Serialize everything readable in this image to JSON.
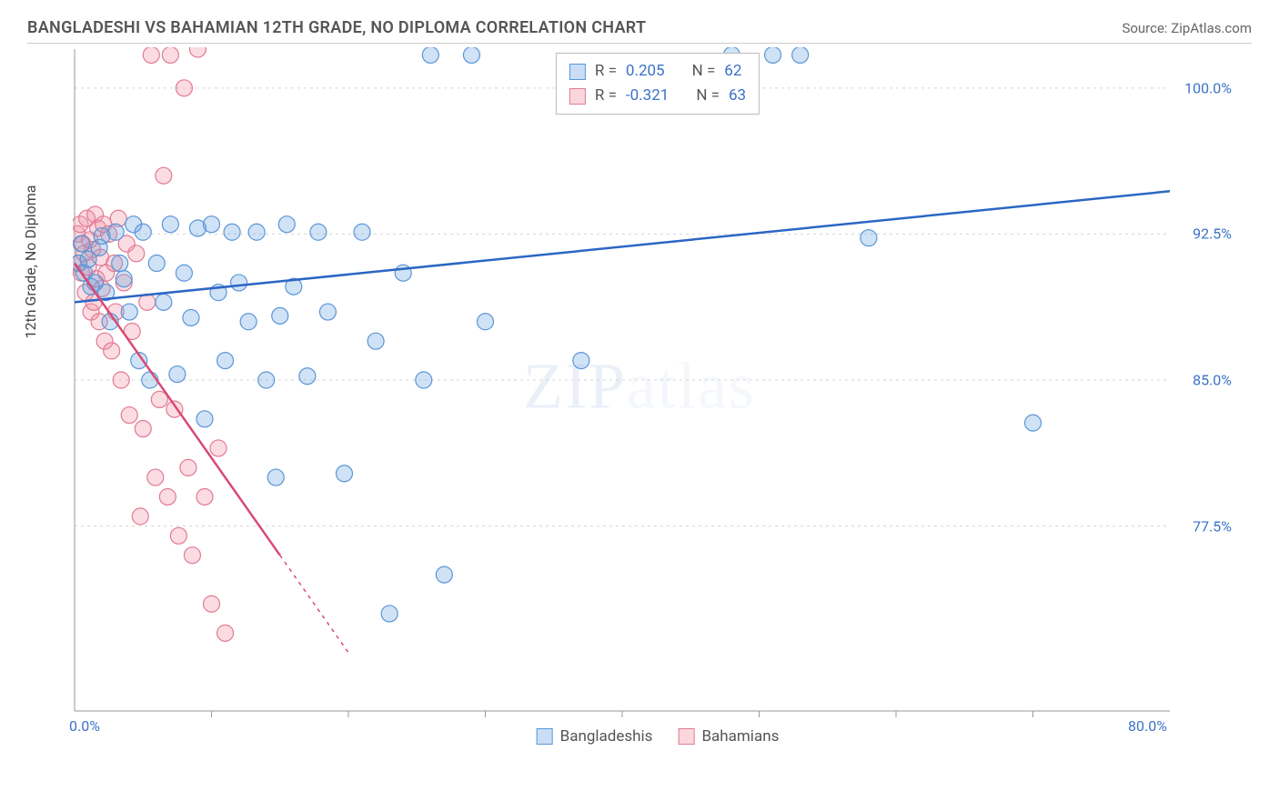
{
  "header": {
    "title": "BANGLADESHI VS BAHAMIAN 12TH GRADE, NO DIPLOMA CORRELATION CHART",
    "source_prefix": "Source: ",
    "source": "ZipAtlas.com"
  },
  "chart": {
    "type": "scatter",
    "ylabel": "12th Grade, No Diploma",
    "watermark": "ZIPatlas",
    "xlim": [
      0,
      80
    ],
    "ylim": [
      68,
      102
    ],
    "xticks": [
      {
        "v": 0,
        "label": "0.0%"
      },
      {
        "v": 80,
        "label": "80.0%"
      }
    ],
    "xminor": [
      10,
      20,
      30,
      40,
      50,
      60,
      70
    ],
    "yticks": [
      {
        "v": 77.5,
        "label": "77.5%"
      },
      {
        "v": 85,
        "label": "85.0%"
      },
      {
        "v": 92.5,
        "label": "92.5%"
      },
      {
        "v": 100,
        "label": "100.0%"
      }
    ],
    "grid_color": "#d5d5d5",
    "axis_color": "#999",
    "background_color": "#ffffff",
    "marker_radius": 9,
    "series": {
      "blue": {
        "label": "Bangladeshis",
        "fill": "rgba(110,165,225,0.32)",
        "stroke": "#5a96d8",
        "trend": {
          "x1": 0,
          "y1": 89,
          "x2": 80,
          "y2": 94.7,
          "color": "#2b66c4",
          "width": 2.5
        },
        "points": [
          [
            0.3,
            91
          ],
          [
            0.5,
            92
          ],
          [
            0.7,
            90.5
          ],
          [
            1,
            91.2
          ],
          [
            1.2,
            89.8
          ],
          [
            1.5,
            90
          ],
          [
            1.8,
            91.8
          ],
          [
            2,
            92.4
          ],
          [
            2.3,
            89.5
          ],
          [
            2.6,
            88
          ],
          [
            3,
            92.6
          ],
          [
            3.3,
            91
          ],
          [
            3.6,
            90.2
          ],
          [
            4,
            88.5
          ],
          [
            4.3,
            93
          ],
          [
            4.7,
            86
          ],
          [
            5,
            92.6
          ],
          [
            5.5,
            85
          ],
          [
            6,
            91
          ],
          [
            6.5,
            89
          ],
          [
            7,
            93
          ],
          [
            7.5,
            85.3
          ],
          [
            8,
            90.5
          ],
          [
            8.5,
            88.2
          ],
          [
            9,
            92.8
          ],
          [
            9.5,
            83
          ],
          [
            10,
            93
          ],
          [
            10.5,
            89.5
          ],
          [
            11,
            86
          ],
          [
            11.5,
            92.6
          ],
          [
            12,
            90
          ],
          [
            12.7,
            88
          ],
          [
            13.3,
            92.6
          ],
          [
            14,
            85
          ],
          [
            14.7,
            80
          ],
          [
            15,
            88.3
          ],
          [
            15.5,
            93
          ],
          [
            16,
            89.8
          ],
          [
            17,
            85.2
          ],
          [
            17.8,
            92.6
          ],
          [
            18.5,
            88.5
          ],
          [
            19.7,
            80.2
          ],
          [
            21,
            92.6
          ],
          [
            22,
            87
          ],
          [
            23,
            73
          ],
          [
            24,
            90.5
          ],
          [
            25.5,
            85
          ],
          [
            26,
            101.7
          ],
          [
            27,
            75
          ],
          [
            29,
            101.7
          ],
          [
            30,
            88
          ],
          [
            37,
            86
          ],
          [
            48,
            101.7
          ],
          [
            51,
            101.7
          ],
          [
            53,
            101.7
          ],
          [
            58,
            92.3
          ],
          [
            70,
            82.8
          ]
        ]
      },
      "pink": {
        "label": "Bahamians",
        "fill": "rgba(240,145,165,0.32)",
        "stroke": "#e27a94",
        "trend": {
          "x1": 0,
          "y1": 91,
          "x2": 20,
          "y2": 71,
          "color": "#d84a74",
          "width": 2.5,
          "dashed_after": 15
        },
        "points": [
          [
            0.2,
            92.5
          ],
          [
            0.3,
            91
          ],
          [
            0.4,
            93
          ],
          [
            0.5,
            90.5
          ],
          [
            0.6,
            92
          ],
          [
            0.7,
            91.5
          ],
          [
            0.8,
            89.5
          ],
          [
            0.9,
            93.3
          ],
          [
            1,
            90.8
          ],
          [
            1.1,
            92.2
          ],
          [
            1.2,
            88.5
          ],
          [
            1.3,
            91.7
          ],
          [
            1.4,
            89
          ],
          [
            1.5,
            93.5
          ],
          [
            1.6,
            90.2
          ],
          [
            1.7,
            92.8
          ],
          [
            1.8,
            88
          ],
          [
            1.9,
            91.3
          ],
          [
            2,
            89.7
          ],
          [
            2.1,
            93
          ],
          [
            2.2,
            87
          ],
          [
            2.3,
            90.5
          ],
          [
            2.5,
            92.5
          ],
          [
            2.7,
            86.5
          ],
          [
            2.9,
            91
          ],
          [
            3,
            88.5
          ],
          [
            3.2,
            93.3
          ],
          [
            3.4,
            85
          ],
          [
            3.6,
            90
          ],
          [
            3.8,
            92
          ],
          [
            4,
            83.2
          ],
          [
            4.2,
            87.5
          ],
          [
            4.5,
            91.5
          ],
          [
            4.8,
            78
          ],
          [
            5,
            82.5
          ],
          [
            5.3,
            89
          ],
          [
            5.6,
            101.7
          ],
          [
            5.9,
            80
          ],
          [
            6.2,
            84
          ],
          [
            6.5,
            95.5
          ],
          [
            6.8,
            79
          ],
          [
            7,
            101.7
          ],
          [
            7.3,
            83.5
          ],
          [
            7.6,
            77
          ],
          [
            8,
            100
          ],
          [
            8.3,
            80.5
          ],
          [
            8.6,
            76
          ],
          [
            9,
            102
          ],
          [
            9.5,
            79
          ],
          [
            10,
            73.5
          ],
          [
            10.5,
            81.5
          ],
          [
            11,
            72
          ]
        ]
      }
    },
    "stats": {
      "blue": {
        "R": "0.205",
        "N": "62"
      },
      "pink": {
        "R": "-0.321",
        "N": "63"
      }
    }
  }
}
